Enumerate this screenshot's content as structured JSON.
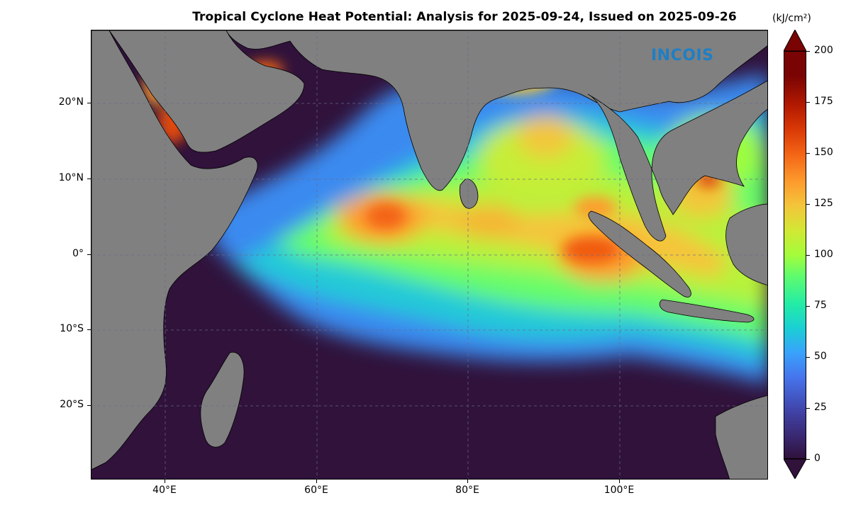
{
  "title": "Tropical Cyclone Heat Potential: Analysis for 2025-09-24, Issued on 2025-09-26",
  "logo_text": "INCOIS",
  "colorbar": {
    "units": "(kJ/cm²)",
    "ticks": [
      "0",
      "25",
      "50",
      "75",
      "100",
      "125",
      "150",
      "175",
      "200"
    ],
    "min": 0,
    "max": 200
  },
  "axes": {
    "lon_ticks": [
      "40°E",
      "60°E",
      "80°E",
      "100°E"
    ],
    "lat_ticks": [
      "20°N",
      "10°N",
      "0°",
      "10°S",
      "20°S"
    ],
    "lon_range": [
      30,
      119
    ],
    "lat_range": [
      -30,
      29.5
    ]
  },
  "colors": {
    "land": "#808080",
    "low": "#30123b",
    "high": "#7a0403"
  }
}
